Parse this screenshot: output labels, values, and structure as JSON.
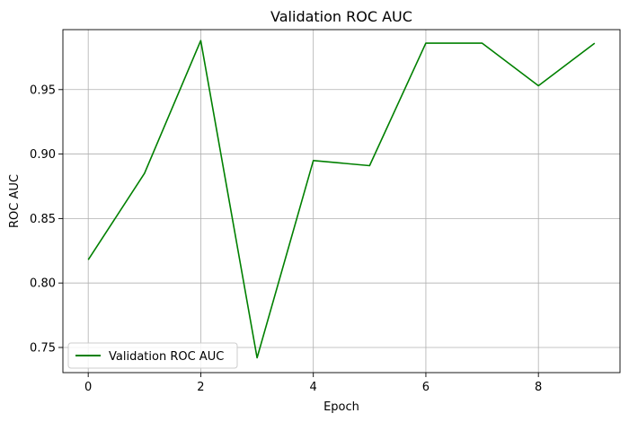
{
  "chart_data": {
    "type": "line",
    "title": "Validation ROC AUC",
    "xlabel": "Epoch",
    "ylabel": "ROC AUC",
    "xlim": [
      -0.45,
      9.45
    ],
    "ylim": [
      0.7305,
      0.9965
    ],
    "xticks": [
      0,
      2,
      4,
      6,
      8
    ],
    "yticks": [
      0.75,
      0.8,
      0.85,
      0.9,
      0.95
    ],
    "xtick_labels": [
      "0",
      "2",
      "4",
      "6",
      "8"
    ],
    "ytick_labels": [
      "0.75",
      "0.80",
      "0.85",
      "0.90",
      "0.95"
    ],
    "grid": true,
    "legend": "bottom-left",
    "series": [
      {
        "name": "Validation ROC AUC",
        "color": "#008000",
        "x": [
          0,
          1,
          2,
          3,
          4,
          5,
          6,
          7,
          8,
          9
        ],
        "y": [
          0.818,
          0.885,
          0.988,
          0.742,
          0.895,
          0.891,
          0.986,
          0.986,
          0.953,
          0.986
        ]
      }
    ]
  }
}
